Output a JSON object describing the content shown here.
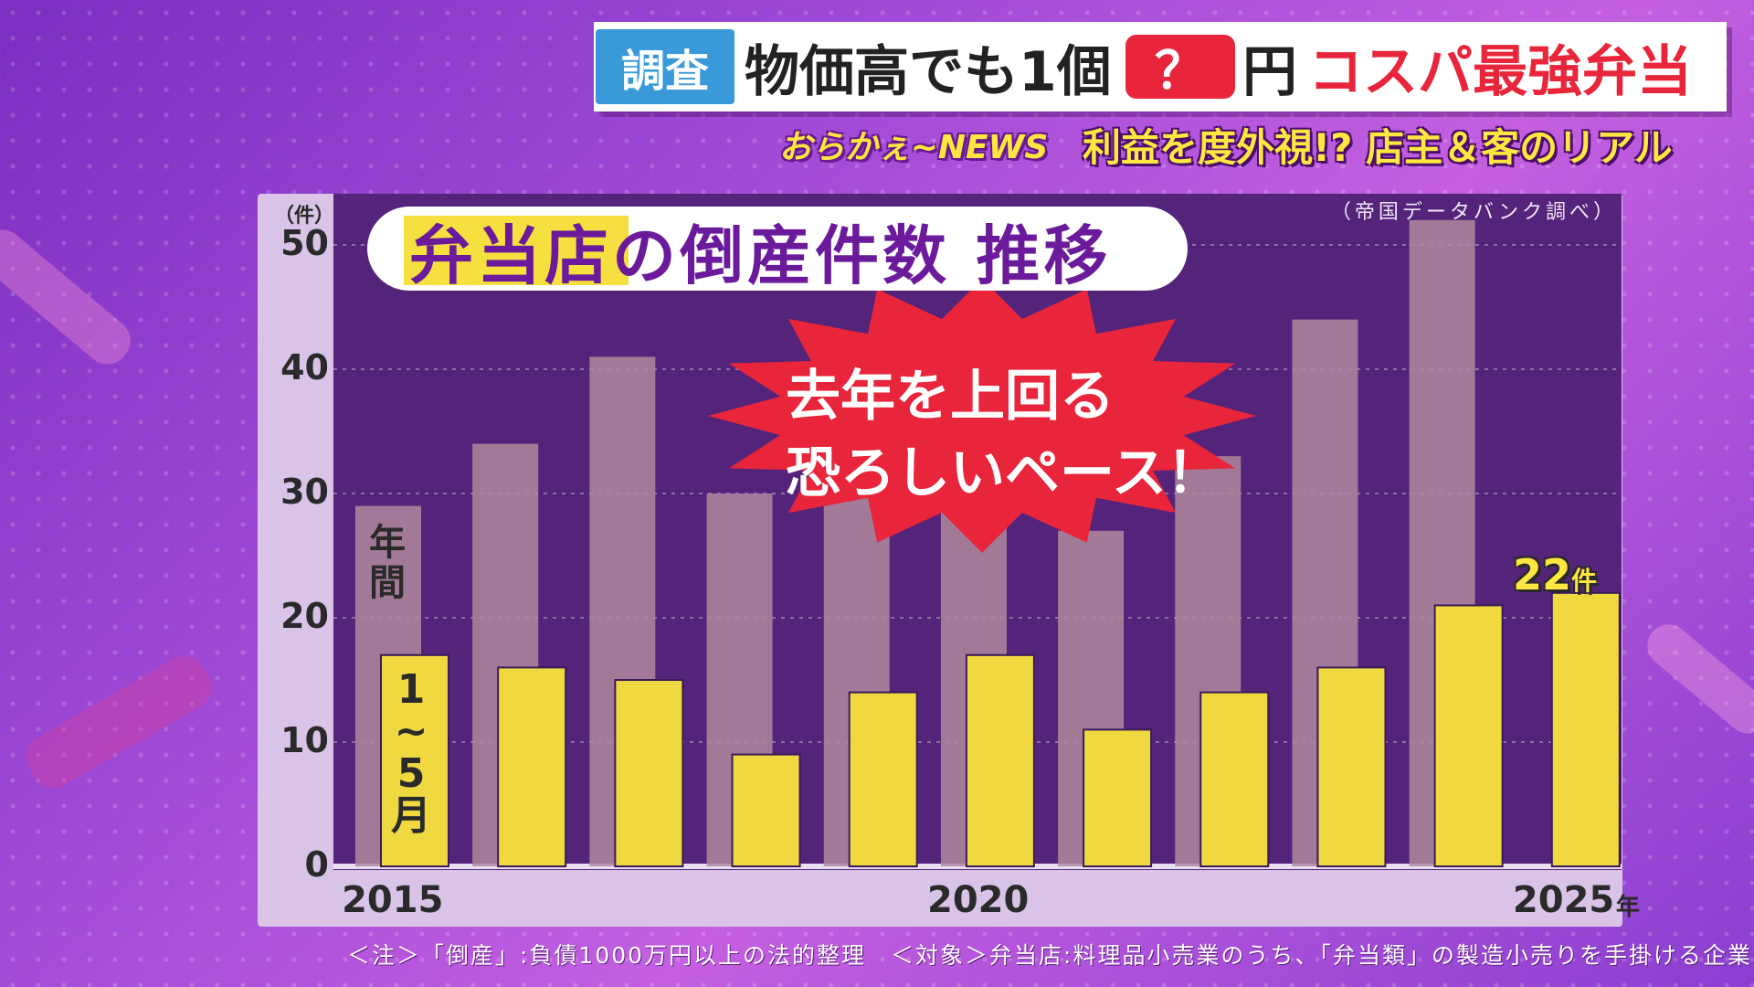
{
  "headline": {
    "tag": "調査",
    "main": "物価高でも1個",
    "mystery": "？",
    "yen": "円",
    "highlight": "コスパ最強弁当"
  },
  "subbar": {
    "logo": "おらかぇ~NEWS",
    "text": "利益を度外視!? 店主＆客のリアル"
  },
  "source": "（帝国データバンク調べ）",
  "callout": {
    "line1": "去年を上回る",
    "line2": "恐ろしいペース！"
  },
  "labels": {
    "annual": "年間",
    "period": "1〜5月",
    "final_value": "22",
    "final_unit": "件"
  },
  "footnote": "＜注＞「倒産」:負債1000万円以上の法的整理　＜対象＞弁当店:料理品小売業のうち、「弁当類」の製造小売りを手掛ける企業",
  "colors": {
    "annual_bar": "#b08a9e",
    "period_bar": "#f0d840",
    "plot_bg": "#54237a",
    "accent_red": "#e8253a"
  },
  "chart_data": {
    "type": "bar",
    "title": "弁当店の倒産件数 推移",
    "ylabel": "（件）",
    "ylim": [
      0,
      50
    ],
    "yticks": [
      0,
      10,
      20,
      30,
      40,
      50
    ],
    "x_tick_labels": [
      "2015",
      "2020",
      "2025"
    ],
    "x_unit": "年",
    "categories": [
      "2015",
      "2016",
      "2017",
      "2018",
      "2019",
      "2020",
      "2021",
      "2022",
      "2023",
      "2024",
      "2025"
    ],
    "series": [
      {
        "name": "年間",
        "values": [
          29,
          34,
          41,
          30,
          30,
          30,
          27,
          33,
          44,
          52,
          null
        ]
      },
      {
        "name": "1〜5月",
        "values": [
          17,
          16,
          15,
          9,
          14,
          17,
          11,
          14,
          16,
          21,
          22
        ]
      }
    ],
    "annotations": [
      "去年を上回る 恐ろしいペース！",
      "22件"
    ],
    "grid": true
  }
}
